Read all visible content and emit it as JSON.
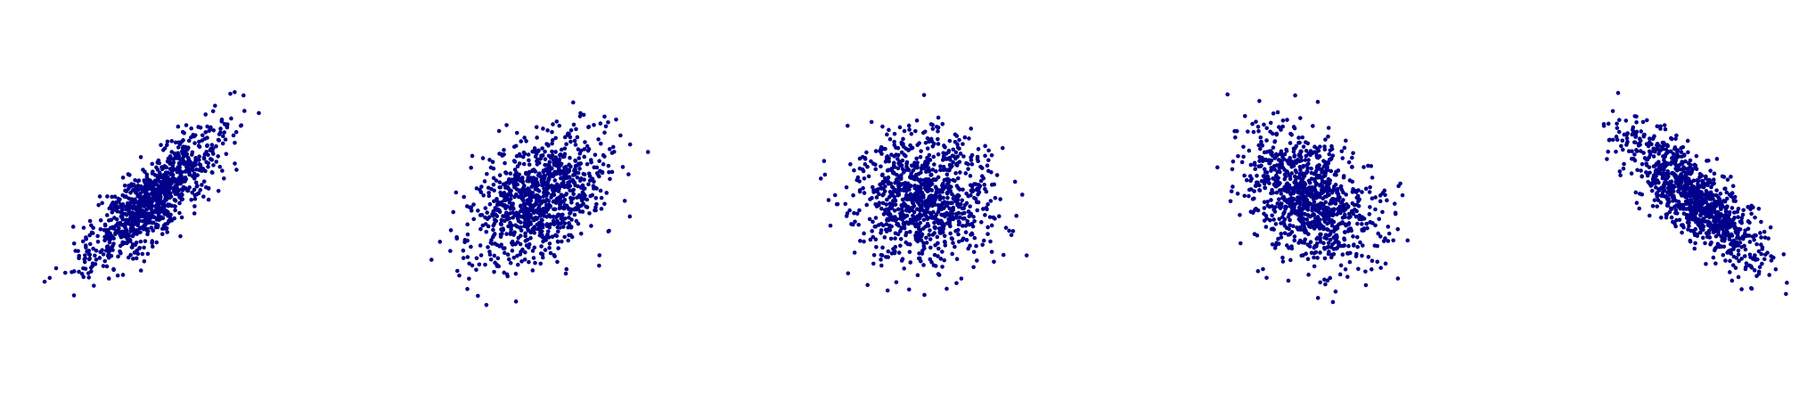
{
  "chart_data": [
    {
      "type": "scatter",
      "title": "",
      "xlabel": "",
      "ylabel": "",
      "correlation": 0.8,
      "points": 1000,
      "axes_visible": false,
      "grid": false,
      "color": "#00008b"
    },
    {
      "type": "scatter",
      "title": "",
      "xlabel": "",
      "ylabel": "",
      "correlation": 0.4,
      "points": 1000,
      "axes_visible": false,
      "grid": false,
      "color": "#00008b"
    },
    {
      "type": "scatter",
      "title": "",
      "xlabel": "",
      "ylabel": "",
      "correlation": 0.0,
      "points": 1000,
      "axes_visible": false,
      "grid": false,
      "color": "#00008b"
    },
    {
      "type": "scatter",
      "title": "",
      "xlabel": "",
      "ylabel": "",
      "correlation": -0.4,
      "points": 1000,
      "axes_visible": false,
      "grid": false,
      "color": "#00008b"
    },
    {
      "type": "scatter",
      "title": "",
      "xlabel": "",
      "ylabel": "",
      "correlation": -0.8,
      "points": 1000,
      "axes_visible": false,
      "grid": false,
      "color": "#00008b"
    }
  ]
}
